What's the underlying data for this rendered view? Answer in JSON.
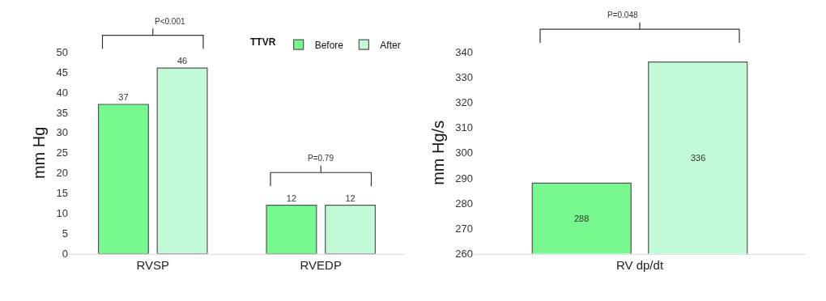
{
  "chart_data": [
    {
      "type": "bar",
      "categories": [
        "RVSP",
        "RVEDP"
      ],
      "ylabel": "mm Hg",
      "legend_title": "TTVR",
      "series": [
        {
          "name": "Before",
          "color": "#77f98f",
          "values": [
            37,
            12
          ]
        },
        {
          "name": "After",
          "color": "#c2f9d6",
          "values": [
            46,
            12
          ]
        }
      ],
      "ylim": [
        0,
        50
      ],
      "yticks": [
        0,
        5,
        10,
        15,
        20,
        25,
        30,
        35,
        40,
        45,
        50
      ],
      "legend": "top right",
      "data_labels": true,
      "annotations": [
        "P<0.001",
        "P=0.79"
      ]
    },
    {
      "type": "bar",
      "categories": [
        "RV dp/dt"
      ],
      "ylabel": "mm Hg/s",
      "series": [
        {
          "color": "#77f98f",
          "values": [
            288
          ]
        },
        {
          "color": "#c2f9d6",
          "values": [
            336
          ]
        }
      ],
      "ylim": [
        260,
        340
      ],
      "yticks": [
        260,
        270,
        280,
        290,
        300,
        310,
        320,
        330,
        340
      ],
      "legend": false,
      "data_labels": true,
      "annotations": [
        "P=0.048"
      ]
    }
  ]
}
